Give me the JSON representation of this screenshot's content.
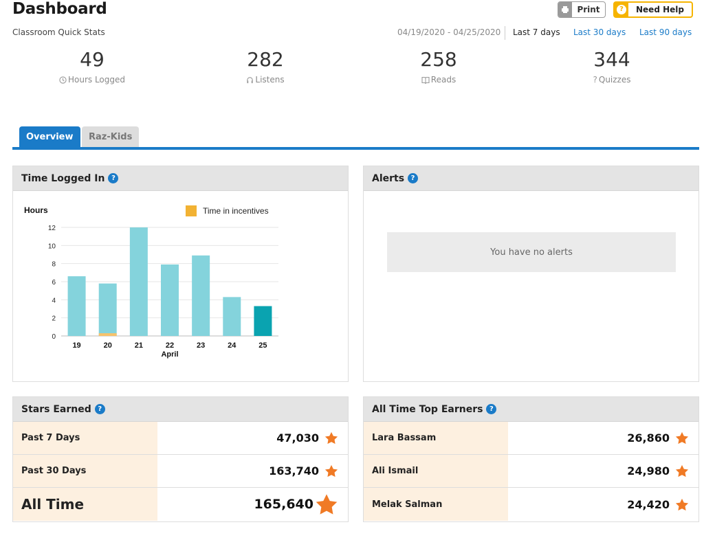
{
  "header": {
    "title": "Dashboard",
    "print_label": "Print",
    "help_label": "Need Help"
  },
  "quick_stats": {
    "label": "Classroom Quick Stats",
    "date_range": "04/19/2020 - 04/25/2020",
    "ranges": [
      "Last 7 days",
      "Last 30 days",
      "Last 90 days"
    ],
    "active_range": "Last 7 days",
    "stats": [
      {
        "value": "49",
        "label": "Hours Logged",
        "icon": "clock-icon"
      },
      {
        "value": "282",
        "label": "Listens",
        "icon": "headphones-icon"
      },
      {
        "value": "258",
        "label": "Reads",
        "icon": "book-icon"
      },
      {
        "value": "344",
        "label": "Quizzes",
        "icon": "question-icon"
      }
    ]
  },
  "tabs": [
    {
      "label": "Overview",
      "active": true
    },
    {
      "label": "Raz-Kids",
      "active": false
    }
  ],
  "time_panel": {
    "title": "Time Logged In",
    "help_icon": "help-icon"
  },
  "chart_data": {
    "type": "bar",
    "title": "",
    "ylabel": "Hours",
    "xlabel": "April",
    "ylim": [
      0,
      12
    ],
    "yticks": [
      0,
      2,
      4,
      6,
      8,
      10,
      12
    ],
    "categories": [
      "19",
      "20",
      "21",
      "22",
      "23",
      "24",
      "25"
    ],
    "series": [
      {
        "values": [
          6.6,
          5.8,
          12.0,
          7.9,
          8.9,
          4.3,
          3.3
        ]
      },
      {
        "name": "Time in incentives",
        "values": [
          0,
          0.3,
          0,
          0,
          0,
          0,
          0
        ]
      }
    ],
    "highlight_index": 6,
    "legend": "top-right",
    "grid": true,
    "colors": {
      "bar": "#84d3dc",
      "bar_current": "#0aa3b0",
      "incentive": "#f6c26b",
      "legend_swatch": "#f2b233"
    }
  },
  "alerts_panel": {
    "title": "Alerts",
    "empty_message": "You have no alerts"
  },
  "stars_panel": {
    "title": "Stars Earned",
    "rows": [
      {
        "label": "Past 7 Days",
        "value": "47,030"
      },
      {
        "label": "Past 30 Days",
        "value": "163,740"
      },
      {
        "label": "All Time",
        "value": "165,640"
      }
    ]
  },
  "top_panel": {
    "title": "All Time Top Earners",
    "rows": [
      {
        "label": "Lara Bassam",
        "value": "26,860"
      },
      {
        "label": "Ali Ismail",
        "value": "24,980"
      },
      {
        "label": "Melak Salman",
        "value": "24,420"
      }
    ]
  },
  "colors": {
    "accent": "#1a7bc8",
    "help_yellow": "#f6b400",
    "star": "#f07a25",
    "row_tint": "#fdf0e0"
  }
}
